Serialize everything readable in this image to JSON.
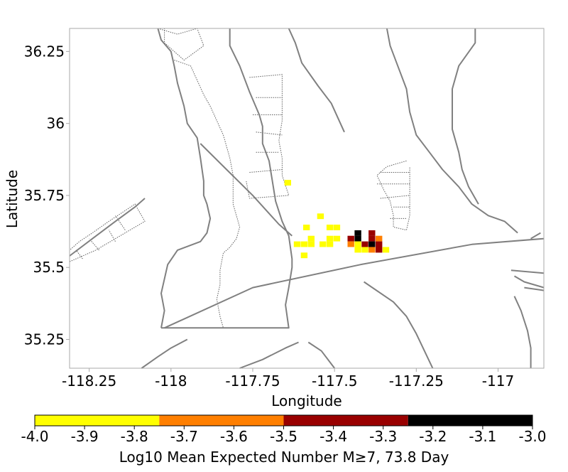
{
  "chart_data": {
    "type": "heatmap",
    "xlabel": "Longitude",
    "ylabel": "Latitude",
    "xlim": [
      -118.31,
      -116.86
    ],
    "ylim": [
      35.15,
      36.33
    ],
    "x_ticks": [
      {
        "value": -118.25,
        "label": "-118.25"
      },
      {
        "value": -118.0,
        "label": "-118"
      },
      {
        "value": -117.75,
        "label": "-117.75"
      },
      {
        "value": -117.5,
        "label": "-117.5"
      },
      {
        "value": -117.25,
        "label": "-117.25"
      },
      {
        "value": -117.0,
        "label": "-117"
      }
    ],
    "y_ticks": [
      {
        "value": 35.25,
        "label": "35.25"
      },
      {
        "value": 35.5,
        "label": "35.5"
      },
      {
        "value": 35.75,
        "label": "35.75"
      },
      {
        "value": 36.0,
        "label": "36"
      },
      {
        "value": 36.25,
        "label": "36.25"
      }
    ],
    "grid": false,
    "cell_size_deg": 0.0204,
    "cells": [
      {
        "lon": -117.6429,
        "lat": 35.7942,
        "value": -3.9
      },
      {
        "lon": -117.5429,
        "lat": 35.6778,
        "value": -3.9
      },
      {
        "lon": -117.5857,
        "lat": 35.639,
        "value": -3.9
      },
      {
        "lon": -117.5143,
        "lat": 35.639,
        "value": -3.9
      },
      {
        "lon": -117.4929,
        "lat": 35.639,
        "value": -3.9
      },
      {
        "lon": -117.5714,
        "lat": 35.6001,
        "value": -3.9
      },
      {
        "lon": -117.5143,
        "lat": 35.6001,
        "value": -3.9
      },
      {
        "lon": -117.4929,
        "lat": 35.6001,
        "value": -3.9
      },
      {
        "lon": -117.45,
        "lat": 35.6001,
        "value": -3.3
      },
      {
        "lon": -117.4286,
        "lat": 35.6001,
        "value": -3.1
      },
      {
        "lon": -117.3857,
        "lat": 35.6001,
        "value": -3.3
      },
      {
        "lon": -117.3643,
        "lat": 35.6001,
        "value": -3.6
      },
      {
        "lon": -117.4286,
        "lat": 35.6195,
        "value": -3.1
      },
      {
        "lon": -117.3857,
        "lat": 35.6195,
        "value": -3.3
      },
      {
        "lon": -117.6143,
        "lat": 35.5807,
        "value": -3.9
      },
      {
        "lon": -117.5929,
        "lat": 35.5807,
        "value": -3.9
      },
      {
        "lon": -117.5714,
        "lat": 35.5807,
        "value": -3.9
      },
      {
        "lon": -117.5357,
        "lat": 35.5807,
        "value": -3.9
      },
      {
        "lon": -117.5143,
        "lat": 35.5807,
        "value": -3.9
      },
      {
        "lon": -117.45,
        "lat": 35.5807,
        "value": -3.6
      },
      {
        "lon": -117.4286,
        "lat": 35.5807,
        "value": -3.9
      },
      {
        "lon": -117.4071,
        "lat": 35.5807,
        "value": -3.3
      },
      {
        "lon": -117.3857,
        "lat": 35.5807,
        "value": -3.1
      },
      {
        "lon": -117.3643,
        "lat": 35.5807,
        "value": -3.3
      },
      {
        "lon": -117.4286,
        "lat": 35.5613,
        "value": -3.9
      },
      {
        "lon": -117.4071,
        "lat": 35.5613,
        "value": -3.9
      },
      {
        "lon": -117.3857,
        "lat": 35.5613,
        "value": -3.6
      },
      {
        "lon": -117.3643,
        "lat": 35.5613,
        "value": -3.3
      },
      {
        "lon": -117.3429,
        "lat": 35.5613,
        "value": -3.9
      },
      {
        "lon": -117.5929,
        "lat": 35.5419,
        "value": -3.9
      }
    ],
    "faults_solid": [
      [
        [
          -118.04,
          36.33
        ],
        [
          -118.03,
          36.29
        ],
        [
          -118.0,
          36.25
        ],
        [
          -117.99,
          36.2
        ],
        [
          -117.98,
          36.14
        ],
        [
          -117.96,
          36.06
        ],
        [
          -117.95,
          36.0
        ],
        [
          -117.92,
          35.95
        ],
        [
          -117.91,
          35.88
        ],
        [
          -117.9,
          35.8
        ],
        [
          -117.9,
          35.75
        ],
        [
          -117.89,
          35.72
        ],
        [
          -117.88,
          35.67
        ],
        [
          -117.89,
          35.62
        ],
        [
          -117.91,
          35.59
        ],
        [
          -117.98,
          35.56
        ],
        [
          -118.01,
          35.51
        ],
        [
          -118.03,
          35.41
        ],
        [
          -118.02,
          35.35
        ],
        [
          -118.03,
          35.29
        ]
      ],
      [
        [
          -117.82,
          36.33
        ],
        [
          -117.82,
          36.27
        ],
        [
          -117.79,
          36.2
        ],
        [
          -117.76,
          36.11
        ],
        [
          -117.73,
          36.03
        ],
        [
          -117.72,
          35.99
        ],
        [
          -117.72,
          35.93
        ],
        [
          -117.7,
          35.87
        ],
        [
          -117.69,
          35.8
        ],
        [
          -117.68,
          35.73
        ],
        [
          -117.66,
          35.66
        ],
        [
          -117.64,
          35.61
        ],
        [
          -117.63,
          35.53
        ],
        [
          -117.63,
          35.5
        ],
        [
          -117.64,
          35.43
        ],
        [
          -117.65,
          35.37
        ],
        [
          -117.64,
          35.29
        ],
        [
          -118.03,
          35.29
        ]
      ],
      [
        [
          -117.91,
          35.93
        ],
        [
          -117.83,
          35.84
        ],
        [
          -117.75,
          35.75
        ],
        [
          -117.67,
          35.65
        ],
        [
          -117.63,
          35.61
        ]
      ],
      [
        [
          -118.31,
          35.54
        ],
        [
          -118.24,
          35.6
        ],
        [
          -118.17,
          35.66
        ],
        [
          -118.11,
          35.71
        ],
        [
          -118.08,
          35.74
        ]
      ],
      [
        [
          -118.02,
          35.29
        ],
        [
          -117.75,
          35.43
        ],
        [
          -117.42,
          35.51
        ],
        [
          -117.08,
          35.58
        ],
        [
          -116.86,
          35.6
        ]
      ],
      [
        [
          -117.34,
          36.33
        ],
        [
          -117.33,
          36.27
        ],
        [
          -117.3,
          36.18
        ],
        [
          -117.28,
          36.12
        ],
        [
          -117.27,
          36.04
        ],
        [
          -117.25,
          35.96
        ],
        [
          -117.21,
          35.9
        ],
        [
          -117.17,
          35.84
        ],
        [
          -117.12,
          35.78
        ],
        [
          -117.08,
          35.72
        ],
        [
          -117.03,
          35.68
        ],
        [
          -116.98,
          35.66
        ],
        [
          -116.94,
          35.62
        ]
      ],
      [
        [
          -117.07,
          36.33
        ],
        [
          -117.07,
          36.28
        ],
        [
          -117.12,
          36.2
        ],
        [
          -117.14,
          36.12
        ],
        [
          -117.14,
          35.98
        ],
        [
          -117.12,
          35.9
        ],
        [
          -117.11,
          35.84
        ],
        [
          -117.09,
          35.78
        ],
        [
          -117.06,
          35.72
        ]
      ],
      [
        [
          -117.64,
          36.33
        ],
        [
          -117.62,
          36.28
        ],
        [
          -117.6,
          36.21
        ],
        [
          -117.55,
          36.13
        ],
        [
          -117.51,
          36.07
        ],
        [
          -117.47,
          35.97
        ]
      ],
      [
        [
          -116.87,
          35.62
        ],
        [
          -116.9,
          35.6
        ]
      ],
      [
        [
          -116.86,
          35.48
        ],
        [
          -116.96,
          35.49
        ]
      ],
      [
        [
          -116.86,
          35.43
        ],
        [
          -116.92,
          35.45
        ],
        [
          -116.95,
          35.47
        ]
      ],
      [
        [
          -116.86,
          35.42
        ],
        [
          -116.92,
          35.43
        ]
      ],
      [
        [
          -116.95,
          35.4
        ],
        [
          -116.93,
          35.35
        ],
        [
          -116.91,
          35.28
        ],
        [
          -116.9,
          35.22
        ],
        [
          -116.9,
          35.15
        ]
      ],
      [
        [
          -117.41,
          35.45
        ],
        [
          -117.32,
          35.38
        ],
        [
          -117.28,
          35.33
        ],
        [
          -117.25,
          35.27
        ],
        [
          -117.2,
          35.15
        ]
      ],
      [
        [
          -117.95,
          35.25
        ],
        [
          -118.0,
          35.22
        ],
        [
          -118.04,
          35.19
        ],
        [
          -118.09,
          35.15
        ]
      ],
      [
        [
          -117.79,
          35.15
        ],
        [
          -117.72,
          35.18
        ],
        [
          -117.65,
          35.22
        ],
        [
          -117.61,
          35.24
        ]
      ],
      [
        [
          -117.5,
          35.15
        ],
        [
          -117.54,
          35.21
        ],
        [
          -117.58,
          35.24
        ]
      ]
    ],
    "faults_dashed": [
      [
        [
          -118.04,
          36.33
        ],
        [
          -117.98,
          36.31
        ],
        [
          -117.92,
          36.33
        ],
        [
          -117.9,
          36.27
        ],
        [
          -117.96,
          36.22
        ],
        [
          -118.02,
          36.28
        ],
        [
          -118.02,
          36.33
        ]
      ],
      [
        [
          -117.99,
          36.22
        ],
        [
          -117.94,
          36.2
        ],
        [
          -117.92,
          36.15
        ],
        [
          -117.9,
          36.1
        ],
        [
          -117.88,
          36.06
        ],
        [
          -117.86,
          36.01
        ],
        [
          -117.84,
          35.96
        ],
        [
          -117.83,
          35.92
        ],
        [
          -117.82,
          35.88
        ],
        [
          -117.81,
          35.82
        ],
        [
          -117.81,
          35.77
        ],
        [
          -117.81,
          35.72
        ],
        [
          -117.8,
          35.68
        ],
        [
          -117.79,
          35.64
        ],
        [
          -117.8,
          35.6
        ],
        [
          -117.82,
          35.57
        ],
        [
          -117.84,
          35.55
        ],
        [
          -117.85,
          35.49
        ],
        [
          -117.85,
          35.44
        ],
        [
          -117.86,
          35.39
        ],
        [
          -117.85,
          35.33
        ],
        [
          -117.84,
          35.29
        ]
      ],
      [
        [
          -117.76,
          36.16
        ],
        [
          -117.66,
          36.17
        ],
        [
          -117.66,
          36.07
        ],
        [
          -117.66,
          36.01
        ],
        [
          -117.67,
          35.94
        ],
        [
          -117.66,
          35.88
        ],
        [
          -117.66,
          35.82
        ],
        [
          -117.64,
          35.75
        ],
        [
          -117.76,
          35.74
        ],
        [
          -117.77,
          35.8
        ]
      ],
      [
        [
          -117.74,
          36.09
        ],
        [
          -117.66,
          36.09
        ]
      ],
      [
        [
          -117.75,
          36.03
        ],
        [
          -117.66,
          36.03
        ]
      ],
      [
        [
          -117.74,
          35.97
        ],
        [
          -117.66,
          35.96
        ]
      ],
      [
        [
          -117.74,
          35.9
        ],
        [
          -117.67,
          35.9
        ]
      ],
      [
        [
          -117.76,
          35.83
        ],
        [
          -117.66,
          35.84
        ]
      ],
      [
        [
          -117.28,
          35.87
        ],
        [
          -117.34,
          35.85
        ],
        [
          -117.37,
          35.82
        ],
        [
          -117.35,
          35.77
        ],
        [
          -117.33,
          35.73
        ],
        [
          -117.32,
          35.68
        ],
        [
          -117.32,
          35.64
        ],
        [
          -117.28,
          35.63
        ],
        [
          -117.27,
          35.68
        ],
        [
          -117.27,
          35.74
        ],
        [
          -117.27,
          35.8
        ],
        [
          -117.27,
          35.85
        ]
      ],
      [
        [
          -117.36,
          35.83
        ],
        [
          -117.27,
          35.83
        ]
      ],
      [
        [
          -117.37,
          35.79
        ],
        [
          -117.27,
          35.79
        ]
      ],
      [
        [
          -117.36,
          35.74
        ],
        [
          -117.27,
          35.75
        ]
      ],
      [
        [
          -117.32,
          35.71
        ],
        [
          -117.27,
          35.71
        ]
      ],
      [
        [
          -117.33,
          35.67
        ],
        [
          -117.28,
          35.67
        ]
      ],
      [
        [
          -118.31,
          35.52
        ],
        [
          -118.23,
          35.56
        ],
        [
          -118.17,
          35.6
        ],
        [
          -118.14,
          35.62
        ],
        [
          -118.08,
          35.66
        ],
        [
          -118.11,
          35.72
        ],
        [
          -118.15,
          35.69
        ],
        [
          -118.19,
          35.66
        ],
        [
          -118.24,
          35.62
        ],
        [
          -118.28,
          35.59
        ],
        [
          -118.31,
          35.56
        ]
      ],
      [
        [
          -118.27,
          35.53
        ],
        [
          -118.29,
          35.56
        ]
      ],
      [
        [
          -118.22,
          35.56
        ],
        [
          -118.25,
          35.6
        ]
      ],
      [
        [
          -118.17,
          35.59
        ],
        [
          -118.19,
          35.63
        ]
      ],
      [
        [
          -118.14,
          35.63
        ],
        [
          -118.17,
          35.68
        ]
      ]
    ],
    "colorbar": {
      "label": "Log10 Mean Expected Number M≥7, 73.8 Day",
      "range": [
        -4.0,
        -3.0
      ],
      "bins": [
        {
          "from": -4.0,
          "to": -3.75,
          "color": "#ffff00"
        },
        {
          "from": -3.75,
          "to": -3.5,
          "color": "#ff7f00"
        },
        {
          "from": -3.5,
          "to": -3.25,
          "color": "#990000"
        },
        {
          "from": -3.25,
          "to": -3.0,
          "color": "#000000"
        }
      ],
      "ticks": [
        {
          "value": -4.0,
          "label": "-4.0"
        },
        {
          "value": -3.9,
          "label": "-3.9"
        },
        {
          "value": -3.8,
          "label": "-3.8"
        },
        {
          "value": -3.7,
          "label": "-3.7"
        },
        {
          "value": -3.6,
          "label": "-3.6"
        },
        {
          "value": -3.5,
          "label": "-3.5"
        },
        {
          "value": -3.4,
          "label": "-3.4"
        },
        {
          "value": -3.3,
          "label": "-3.3"
        },
        {
          "value": -3.2,
          "label": "-3.2"
        },
        {
          "value": -3.1,
          "label": "-3.1"
        },
        {
          "value": -3.0,
          "label": "-3.0"
        }
      ]
    },
    "colors": {
      "fault_solid": "#808080",
      "fault_dashed": "#606060",
      "frame": "#aaaaaa"
    }
  }
}
